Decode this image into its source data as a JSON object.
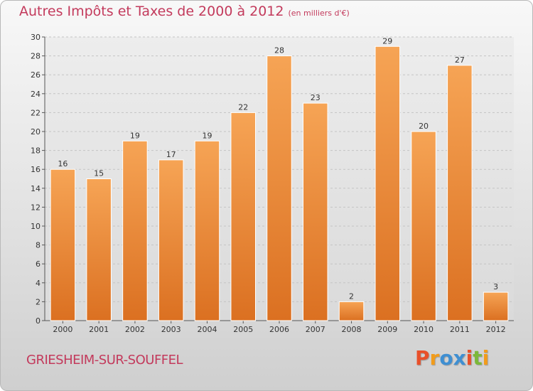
{
  "chart_data": {
    "type": "bar",
    "title": "Autres Impôts et Taxes de 2000 à 2012",
    "subtitle": "(en milliers d'€)",
    "categories": [
      "2000",
      "2001",
      "2002",
      "2003",
      "2004",
      "2005",
      "2006",
      "2007",
      "2008",
      "2009",
      "2010",
      "2011",
      "2012"
    ],
    "values": [
      16,
      15,
      19,
      17,
      19,
      22,
      28,
      23,
      2,
      29,
      20,
      27,
      3
    ],
    "ylim": [
      0,
      30
    ],
    "yticks": [
      0,
      2,
      4,
      6,
      8,
      10,
      12,
      14,
      16,
      18,
      20,
      22,
      24,
      26,
      28,
      30
    ],
    "grid": true,
    "bar_color": "#f0913a"
  },
  "footer": {
    "commune": "GRIESHEIM-SUR-SOUFFEL",
    "brand": "Proxiti",
    "brand_colors": [
      "#e8502a",
      "#f29c1b",
      "#3f8fd2",
      "#3f8fd2",
      "#e8502a",
      "#7cb83a",
      "#f29c1b"
    ]
  }
}
